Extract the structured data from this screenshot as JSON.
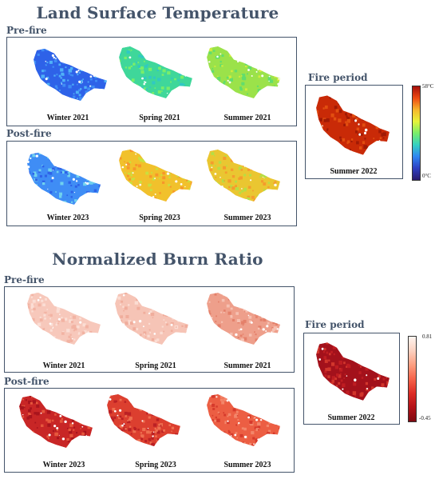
{
  "lst": {
    "title": "Land Surface Temperature",
    "pre_label": "Pre-fire",
    "post_label": "Post-fire",
    "fire_label": "Fire period",
    "maps": [
      {
        "caption": "Winter 2021",
        "palette": [
          "#2e62e8",
          "#3f8df5",
          "#4fb1f7"
        ]
      },
      {
        "caption": "Spring 2021",
        "palette": [
          "#3fd79a",
          "#79ee6a",
          "#30c8c4"
        ]
      },
      {
        "caption": "Summer 2021",
        "palette": [
          "#9be24a",
          "#d2ec3c",
          "#62dd6d"
        ]
      },
      {
        "caption": "Winter 2023",
        "palette": [
          "#3f8df5",
          "#2e62e8",
          "#6fd1ee"
        ]
      },
      {
        "caption": "Spring 2023",
        "palette": [
          "#f1c12c",
          "#c8e03f",
          "#f7972a"
        ]
      },
      {
        "caption": "Summer 2023",
        "palette": [
          "#eac631",
          "#f59c2d",
          "#b6de44"
        ]
      },
      {
        "caption": "Summer 2022",
        "palette": [
          "#c92a07",
          "#e24e10",
          "#a01a05"
        ]
      }
    ],
    "colorbar": {
      "max_label": "58°C",
      "min_label": "0°C",
      "colors": [
        "#a50f0b",
        "#ee4a12",
        "#f6b62c",
        "#e7f33a",
        "#79ee6a",
        "#35d1c2",
        "#2f86f2",
        "#2e3fc2",
        "#2a1b6e"
      ]
    }
  },
  "nbr": {
    "title": "Normalized Burn Ratio",
    "pre_label": "Pre-fire",
    "post_label": "Post-fire",
    "fire_label": "Fire period",
    "maps": [
      {
        "caption": "Winter 2021",
        "palette": [
          "#f7c8bb",
          "#fbded5",
          "#f2b3a3"
        ]
      },
      {
        "caption": "Spring 2021",
        "palette": [
          "#f6c4b6",
          "#fbdcd2",
          "#f0ad9c"
        ]
      },
      {
        "caption": "Summer 2021",
        "palette": [
          "#ee9f8b",
          "#f6c0b1",
          "#e4806a"
        ]
      },
      {
        "caption": "Winter 2023",
        "palette": [
          "#c82626",
          "#e6573c",
          "#a8141d"
        ]
      },
      {
        "caption": "Spring 2023",
        "palette": [
          "#dc3f2f",
          "#ee6f50",
          "#bb2024"
        ]
      },
      {
        "caption": "Summer 2023",
        "palette": [
          "#ec5e43",
          "#f3866a",
          "#d63a2c"
        ]
      },
      {
        "caption": "Summer 2022",
        "palette": [
          "#a3111b",
          "#bf1d22",
          "#d2362c"
        ]
      }
    ],
    "colorbar": {
      "max_label": "0.81",
      "min_label": "-0.45",
      "colors": [
        "#fff5f0",
        "#fcd1c0",
        "#fc9e80",
        "#f6634a",
        "#dd2c25",
        "#b31218",
        "#7f0a12"
      ]
    }
  }
}
